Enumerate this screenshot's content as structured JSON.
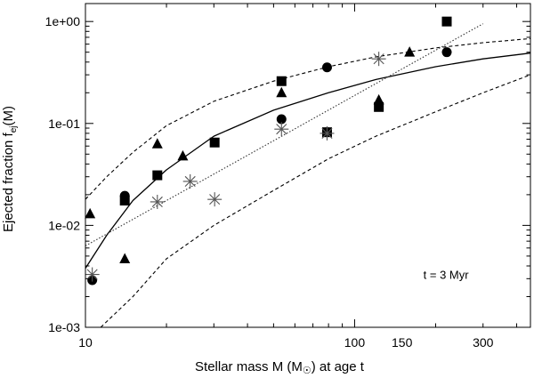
{
  "chart_data": {
    "type": "scatter",
    "title": "",
    "xlabel_main": "Stellar mass M (M",
    "xlabel_sym": "☉",
    "xlabel_tail": ") at age t",
    "ylabel_main": "Ejected fraction f",
    "ylabel_sub": "ej",
    "ylabel_tail": "(M)",
    "xscale": "log",
    "yscale": "log",
    "xlim": [
      10,
      450
    ],
    "ylim": [
      0.001,
      1.5
    ],
    "x_ticks": [
      {
        "value": 10,
        "label": "10"
      },
      {
        "value": 100,
        "label": "100"
      },
      {
        "value": 150,
        "label": "150"
      },
      {
        "value": 300,
        "label": "300"
      }
    ],
    "y_ticks": [
      {
        "value": 1,
        "label": "1e+00"
      },
      {
        "value": 0.1,
        "label": "1e-01"
      },
      {
        "value": 0.01,
        "label": "1e-02"
      },
      {
        "value": 0.001,
        "label": "1e-03"
      }
    ],
    "grid": false,
    "legend": "none",
    "annotation": {
      "text": "t = 3 Myr",
      "x": 180,
      "y": 0.0033
    },
    "series": [
      {
        "marker": "circle",
        "points": [
          [
            10.6,
            0.0029
          ],
          [
            14.0,
            0.0195
          ],
          [
            53.5,
            0.11
          ],
          [
            79,
            0.355
          ],
          [
            79,
            0.082
          ],
          [
            220,
            0.5
          ]
        ]
      },
      {
        "marker": "square",
        "points": [
          [
            14.0,
            0.0175
          ],
          [
            18.5,
            0.031
          ],
          [
            30.2,
            0.065
          ],
          [
            53.5,
            0.26
          ],
          [
            79,
            0.082
          ],
          [
            123,
            0.145
          ],
          [
            220,
            1.0
          ]
        ]
      },
      {
        "marker": "triangle",
        "points": [
          [
            10.4,
            0.013
          ],
          [
            14.0,
            0.0047
          ],
          [
            18.5,
            0.063
          ],
          [
            23,
            0.048
          ],
          [
            53.5,
            0.2
          ],
          [
            123,
            0.17
          ],
          [
            160,
            0.5
          ]
        ]
      },
      {
        "marker": "star",
        "points": [
          [
            10.6,
            0.0033
          ],
          [
            18.5,
            0.017
          ],
          [
            24.5,
            0.027
          ],
          [
            30.2,
            0.018
          ],
          [
            53.5,
            0.088
          ],
          [
            79,
            0.08
          ],
          [
            123,
            0.43
          ]
        ]
      }
    ],
    "lines": [
      {
        "name_hidden": "fit-solid",
        "style": "solid",
        "width": 1.3,
        "points": [
          [
            10,
            0.0038
          ],
          [
            12,
            0.008
          ],
          [
            15,
            0.0175
          ],
          [
            20,
            0.035
          ],
          [
            30,
            0.075
          ],
          [
            50,
            0.135
          ],
          [
            80,
            0.2
          ],
          [
            120,
            0.27
          ],
          [
            200,
            0.36
          ],
          [
            300,
            0.43
          ],
          [
            450,
            0.49
          ]
        ]
      },
      {
        "name_hidden": "upper-bound",
        "style": "dashed",
        "width": 1.1,
        "points": [
          [
            10,
            0.018
          ],
          [
            12,
            0.03
          ],
          [
            15,
            0.052
          ],
          [
            20,
            0.095
          ],
          [
            30,
            0.165
          ],
          [
            50,
            0.26
          ],
          [
            80,
            0.36
          ],
          [
            120,
            0.45
          ],
          [
            200,
            0.55
          ],
          [
            300,
            0.62
          ],
          [
            450,
            0.68
          ]
        ]
      },
      {
        "name_hidden": "lower-bound",
        "style": "dashed",
        "width": 1.1,
        "points": [
          [
            11.4,
            0.001
          ],
          [
            15,
            0.002
          ],
          [
            20,
            0.0047
          ],
          [
            30,
            0.01
          ],
          [
            50,
            0.022
          ],
          [
            80,
            0.045
          ],
          [
            120,
            0.075
          ],
          [
            200,
            0.13
          ],
          [
            300,
            0.2
          ],
          [
            450,
            0.3
          ]
        ]
      },
      {
        "name_hidden": "power-law",
        "style": "dotted",
        "width": 1.1,
        "points": [
          [
            10,
            0.0063
          ],
          [
            300,
            0.95
          ]
        ]
      }
    ]
  },
  "colors": {
    "axis": "#000000",
    "marker": "#000000",
    "star": "#555555",
    "background": "#ffffff"
  },
  "annotation_text": "t = 3 Myr"
}
